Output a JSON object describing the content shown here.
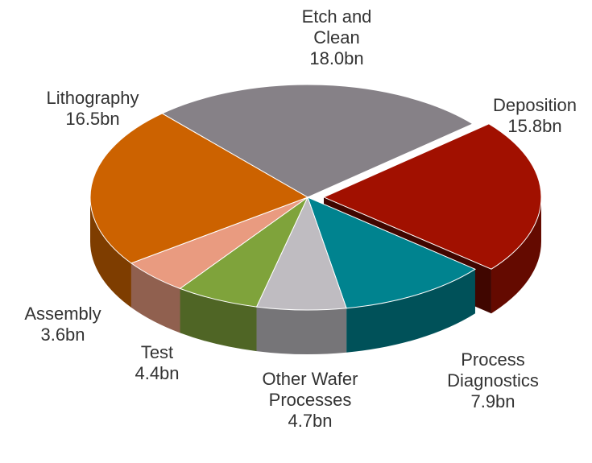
{
  "chart_data": {
    "type": "pie3d",
    "categories": [
      "Etch and Clean",
      "Deposition",
      "Process Diagnostics",
      "Other Wafer Processes",
      "Test",
      "Assembly",
      "Lithography"
    ],
    "values": [
      18.0,
      15.8,
      7.9,
      4.7,
      4.4,
      3.6,
      16.5
    ],
    "value_labels": [
      "18.0bn",
      "15.8bn",
      "7.9bn",
      "4.7bn",
      "4.4bn",
      "3.6bn",
      "16.5bn"
    ],
    "colors": [
      "#868187",
      "#a11000",
      "#00838f",
      "#bfbcc1",
      "#7fa33b",
      "#e99b80",
      "#cc6200"
    ],
    "exploded": [
      false,
      true,
      false,
      false,
      false,
      false,
      false
    ]
  }
}
